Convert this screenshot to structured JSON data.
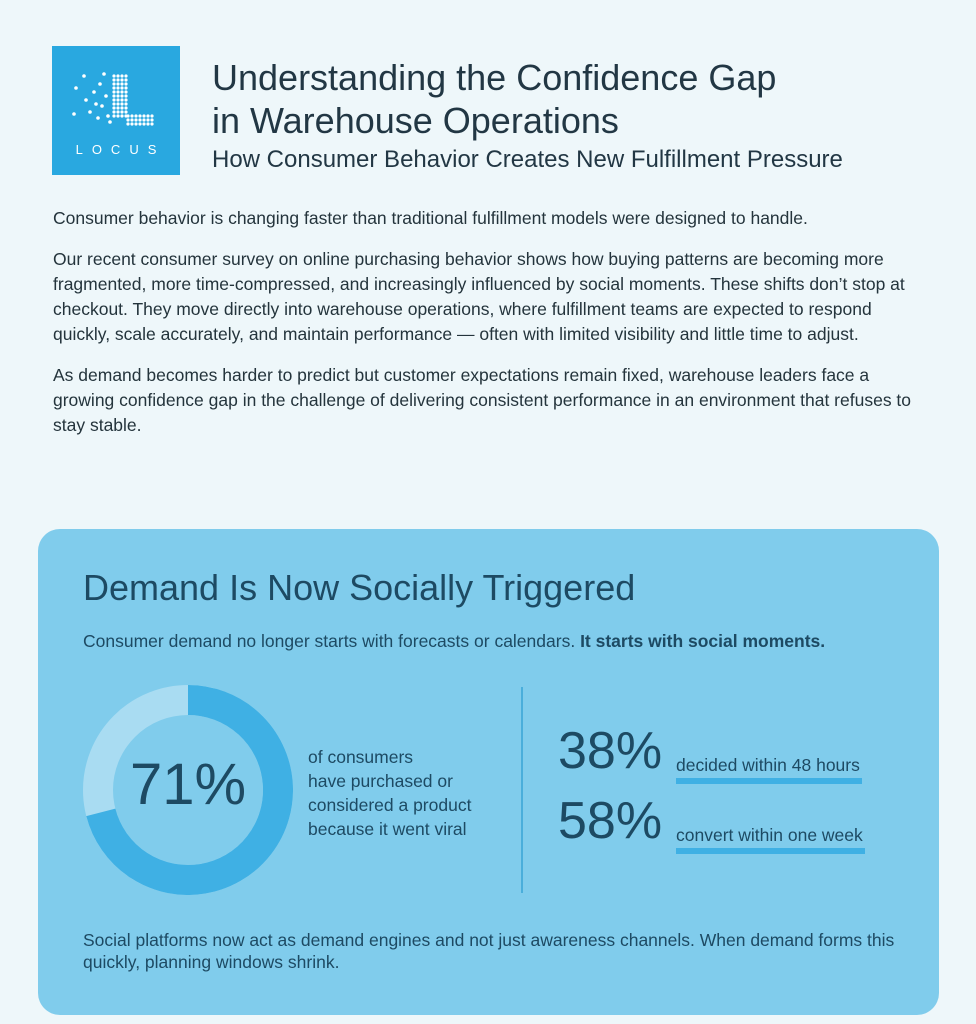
{
  "logo": {
    "text": "LOCUS",
    "color": "#29a8e0"
  },
  "header": {
    "title_line1": "Understanding the Confidence Gap",
    "title_line2": "in Warehouse Operations",
    "subtitle": "How Consumer Behavior Creates New Fulfillment Pressure"
  },
  "intro": [
    "Consumer behavior is changing faster than traditional fulfillment models were designed to handle.",
    "Our recent consumer survey on online purchasing behavior shows how buying patterns are becoming more fragmented, more time-compressed, and increasingly influenced by social moments. These shifts don’t stop at checkout. They move directly into warehouse operations, where fulfillment teams are expected to respond quickly, scale accurately, and maintain performance — often with limited visibility and little time to adjust.",
    "As demand becomes harder to predict but customer expectations remain fixed, warehouse leaders face a growing confidence gap in the challenge of delivering consistent performance in an environment that refuses to stay stable."
  ],
  "card": {
    "heading": "Demand Is Now Socially Triggered",
    "lead": "Consumer demand no longer starts with forecasts or calendars.",
    "lead_bold": "It starts with social moments.",
    "donut": {
      "value_label": "71%",
      "percent": 71,
      "description": [
        "of consumers",
        "have purchased or",
        "considered a product",
        "because it went viral"
      ],
      "fill_color": "#3fb0e4",
      "track_color": "#a9dcf2"
    },
    "stats": [
      {
        "value": "38%",
        "label": "decided within 48 hours"
      },
      {
        "value": "58%",
        "label": "convert within one week"
      }
    ],
    "footer": "Social platforms now act as demand engines and not just awareness channels. When demand forms this quickly, planning windows shrink.",
    "background": "#80ccec"
  }
}
